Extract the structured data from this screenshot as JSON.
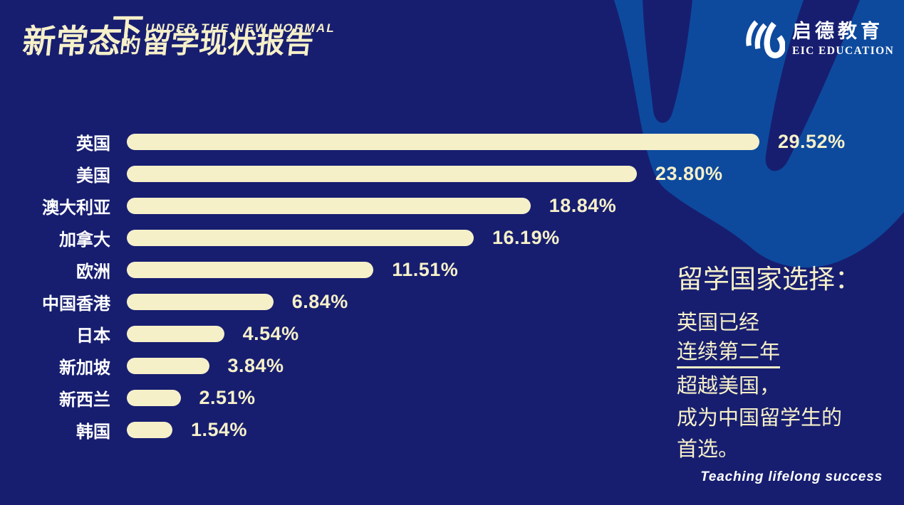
{
  "header": {
    "subtitle_en": "UNDER THE NEW NORMAL",
    "title_zh": {
      "part1": "新常态",
      "part2": "下",
      "part3": "的",
      "part4": "留学现状报告"
    }
  },
  "logo": {
    "icon": "eic-swoosh-logo",
    "name_zh": "启德教育",
    "name_en": "EIC EDUCATION"
  },
  "chart_data": {
    "type": "bar",
    "orientation": "horizontal",
    "categories": [
      "英国",
      "美国",
      "澳大利亚",
      "加拿大",
      "欧洲",
      "中国香港",
      "日本",
      "新加坡",
      "新西兰",
      "韩国"
    ],
    "values": [
      29.52,
      23.8,
      18.84,
      16.19,
      11.51,
      6.84,
      4.54,
      3.84,
      2.51,
      1.54
    ],
    "value_labels": [
      "29.52%",
      "23.80%",
      "18.84%",
      "16.19%",
      "11.51%",
      "6.84%",
      "4.54%",
      "3.84%",
      "2.51%",
      "1.54%"
    ],
    "title": "",
    "xlabel": "",
    "ylabel": "",
    "xlim": [
      0,
      29.52
    ],
    "grid": false,
    "legend": false,
    "bar_color": "#f6f0c9",
    "category_label_color": "#ffffff",
    "value_label_color": "#f6f0c9"
  },
  "annotation": {
    "title": "留学国家选择：",
    "lines": [
      {
        "text": "英国已经",
        "underline": false
      },
      {
        "text": "连续第二年",
        "underline": true
      },
      {
        "text": "超越美国，",
        "underline": false
      },
      {
        "text": "成为中国留学生的",
        "underline": false
      },
      {
        "text": "首选。",
        "underline": false
      }
    ]
  },
  "footer": {
    "slogan": "Teaching lifelong success"
  },
  "colors": {
    "background": "#171e70",
    "accent_light": "#0d4a9e",
    "cream": "#f6f0c9",
    "white": "#ffffff"
  }
}
